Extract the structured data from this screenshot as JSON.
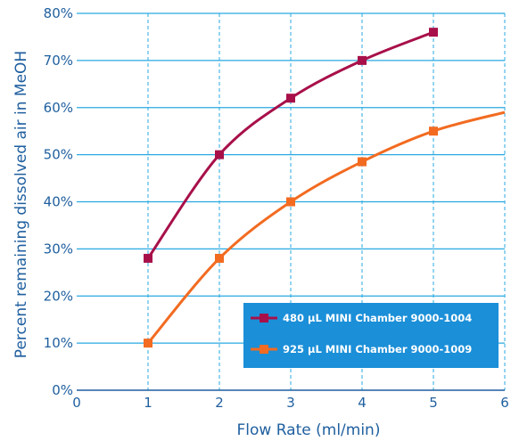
{
  "chart_data": {
    "type": "line",
    "xlabel": "Flow Rate (ml/min)",
    "ylabel": "Percent remaining dissolved air in MeOH",
    "xlim": [
      0,
      6
    ],
    "ylim": [
      0,
      80
    ],
    "x_ticks": [
      "0",
      "1",
      "2",
      "3",
      "4",
      "5",
      "6"
    ],
    "y_ticks": [
      "0%",
      "10%",
      "20%",
      "30%",
      "40%",
      "50%",
      "60%",
      "70%",
      "80%"
    ],
    "grid": "vertical dashed, horizontal solid",
    "legend_position": "bottom-right",
    "series": [
      {
        "name": "480 µL MINI Chamber 9000-1004",
        "color": "#a8104a",
        "marker": "square",
        "x": [
          1,
          2,
          3,
          4,
          5
        ],
        "y": [
          28,
          50,
          62,
          70,
          76
        ]
      },
      {
        "name": "925 µL MINI Chamber 9000-1009",
        "color": "#f26b21",
        "marker": "square",
        "x": [
          1,
          2,
          3,
          4,
          5
        ],
        "y": [
          10,
          28,
          40,
          48.5,
          55
        ],
        "curve_end": {
          "x": 6,
          "y": 59
        }
      }
    ]
  },
  "colors": {
    "axis": "#1f5f9f",
    "grid": "#29a9e1",
    "legend_bg": "#1b8fd8"
  }
}
